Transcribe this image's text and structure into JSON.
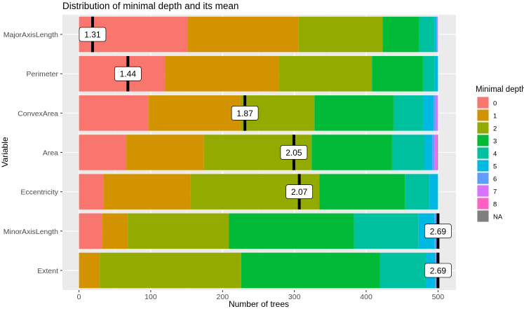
{
  "chart_data": {
    "type": "bar",
    "orientation": "horizontal",
    "stacked": true,
    "title": "Distribution of minimal depth and its mean",
    "xlabel": "Number of trees",
    "ylabel": "Variable",
    "xlim": [
      -23,
      525
    ],
    "xticks": [
      0,
      100,
      200,
      300,
      400,
      500
    ],
    "xtick_labels": [
      "0",
      "100",
      "200",
      "300",
      "400",
      "500"
    ],
    "grid": true,
    "categories": [
      "MajorAxisLength",
      "Perimeter",
      "ConvexArea",
      "Area",
      "Eccentricity",
      "MinorAxisLength",
      "Extent"
    ],
    "mean_labels": [
      "1.31",
      "1.44",
      "1.87",
      "2.05",
      "2.07",
      "2.69",
      "2.69"
    ],
    "means": [
      1.31,
      1.44,
      1.87,
      2.05,
      2.07,
      2.69,
      2.69
    ],
    "series": [
      {
        "name": "0",
        "color": "#F8766D",
        "values": [
          151,
          120,
          97,
          66,
          34,
          32,
          0
        ]
      },
      {
        "name": "1",
        "color": "#D39200",
        "values": [
          155,
          158,
          128,
          108,
          121,
          36,
          29
        ]
      },
      {
        "name": "2",
        "color": "#93AA00",
        "values": [
          117,
          130,
          103,
          150,
          180,
          141,
          197
        ]
      },
      {
        "name": "3",
        "color": "#00BA38",
        "values": [
          51,
          71,
          110,
          112,
          119,
          174,
          193
        ]
      },
      {
        "name": "4",
        "color": "#00C19F",
        "values": [
          21,
          16,
          42,
          46,
          34,
          90,
          64
        ]
      },
      {
        "name": "5",
        "color": "#00B9E3",
        "values": [
          3,
          5,
          14,
          10,
          12,
          22,
          13
        ]
      },
      {
        "name": "6",
        "color": "#619CFF",
        "values": [
          1,
          0,
          3,
          3,
          0,
          3,
          2
        ]
      },
      {
        "name": "7",
        "color": "#DB72FB",
        "values": [
          1,
          0,
          3,
          3,
          0,
          1,
          1
        ]
      },
      {
        "name": "8",
        "color": "#FF61C3",
        "values": [
          0,
          0,
          0,
          1,
          0,
          1,
          1
        ]
      },
      {
        "name": "NA",
        "color": "#7F7F7F",
        "values": [
          0,
          0,
          0,
          1,
          0,
          0,
          0
        ]
      }
    ],
    "legend": {
      "title": "Minimal depth",
      "position": "right"
    }
  },
  "colors": {
    "panel_background": "#EBEBEB",
    "grid_major": "#FFFFFF",
    "mean_line": "#000000"
  }
}
